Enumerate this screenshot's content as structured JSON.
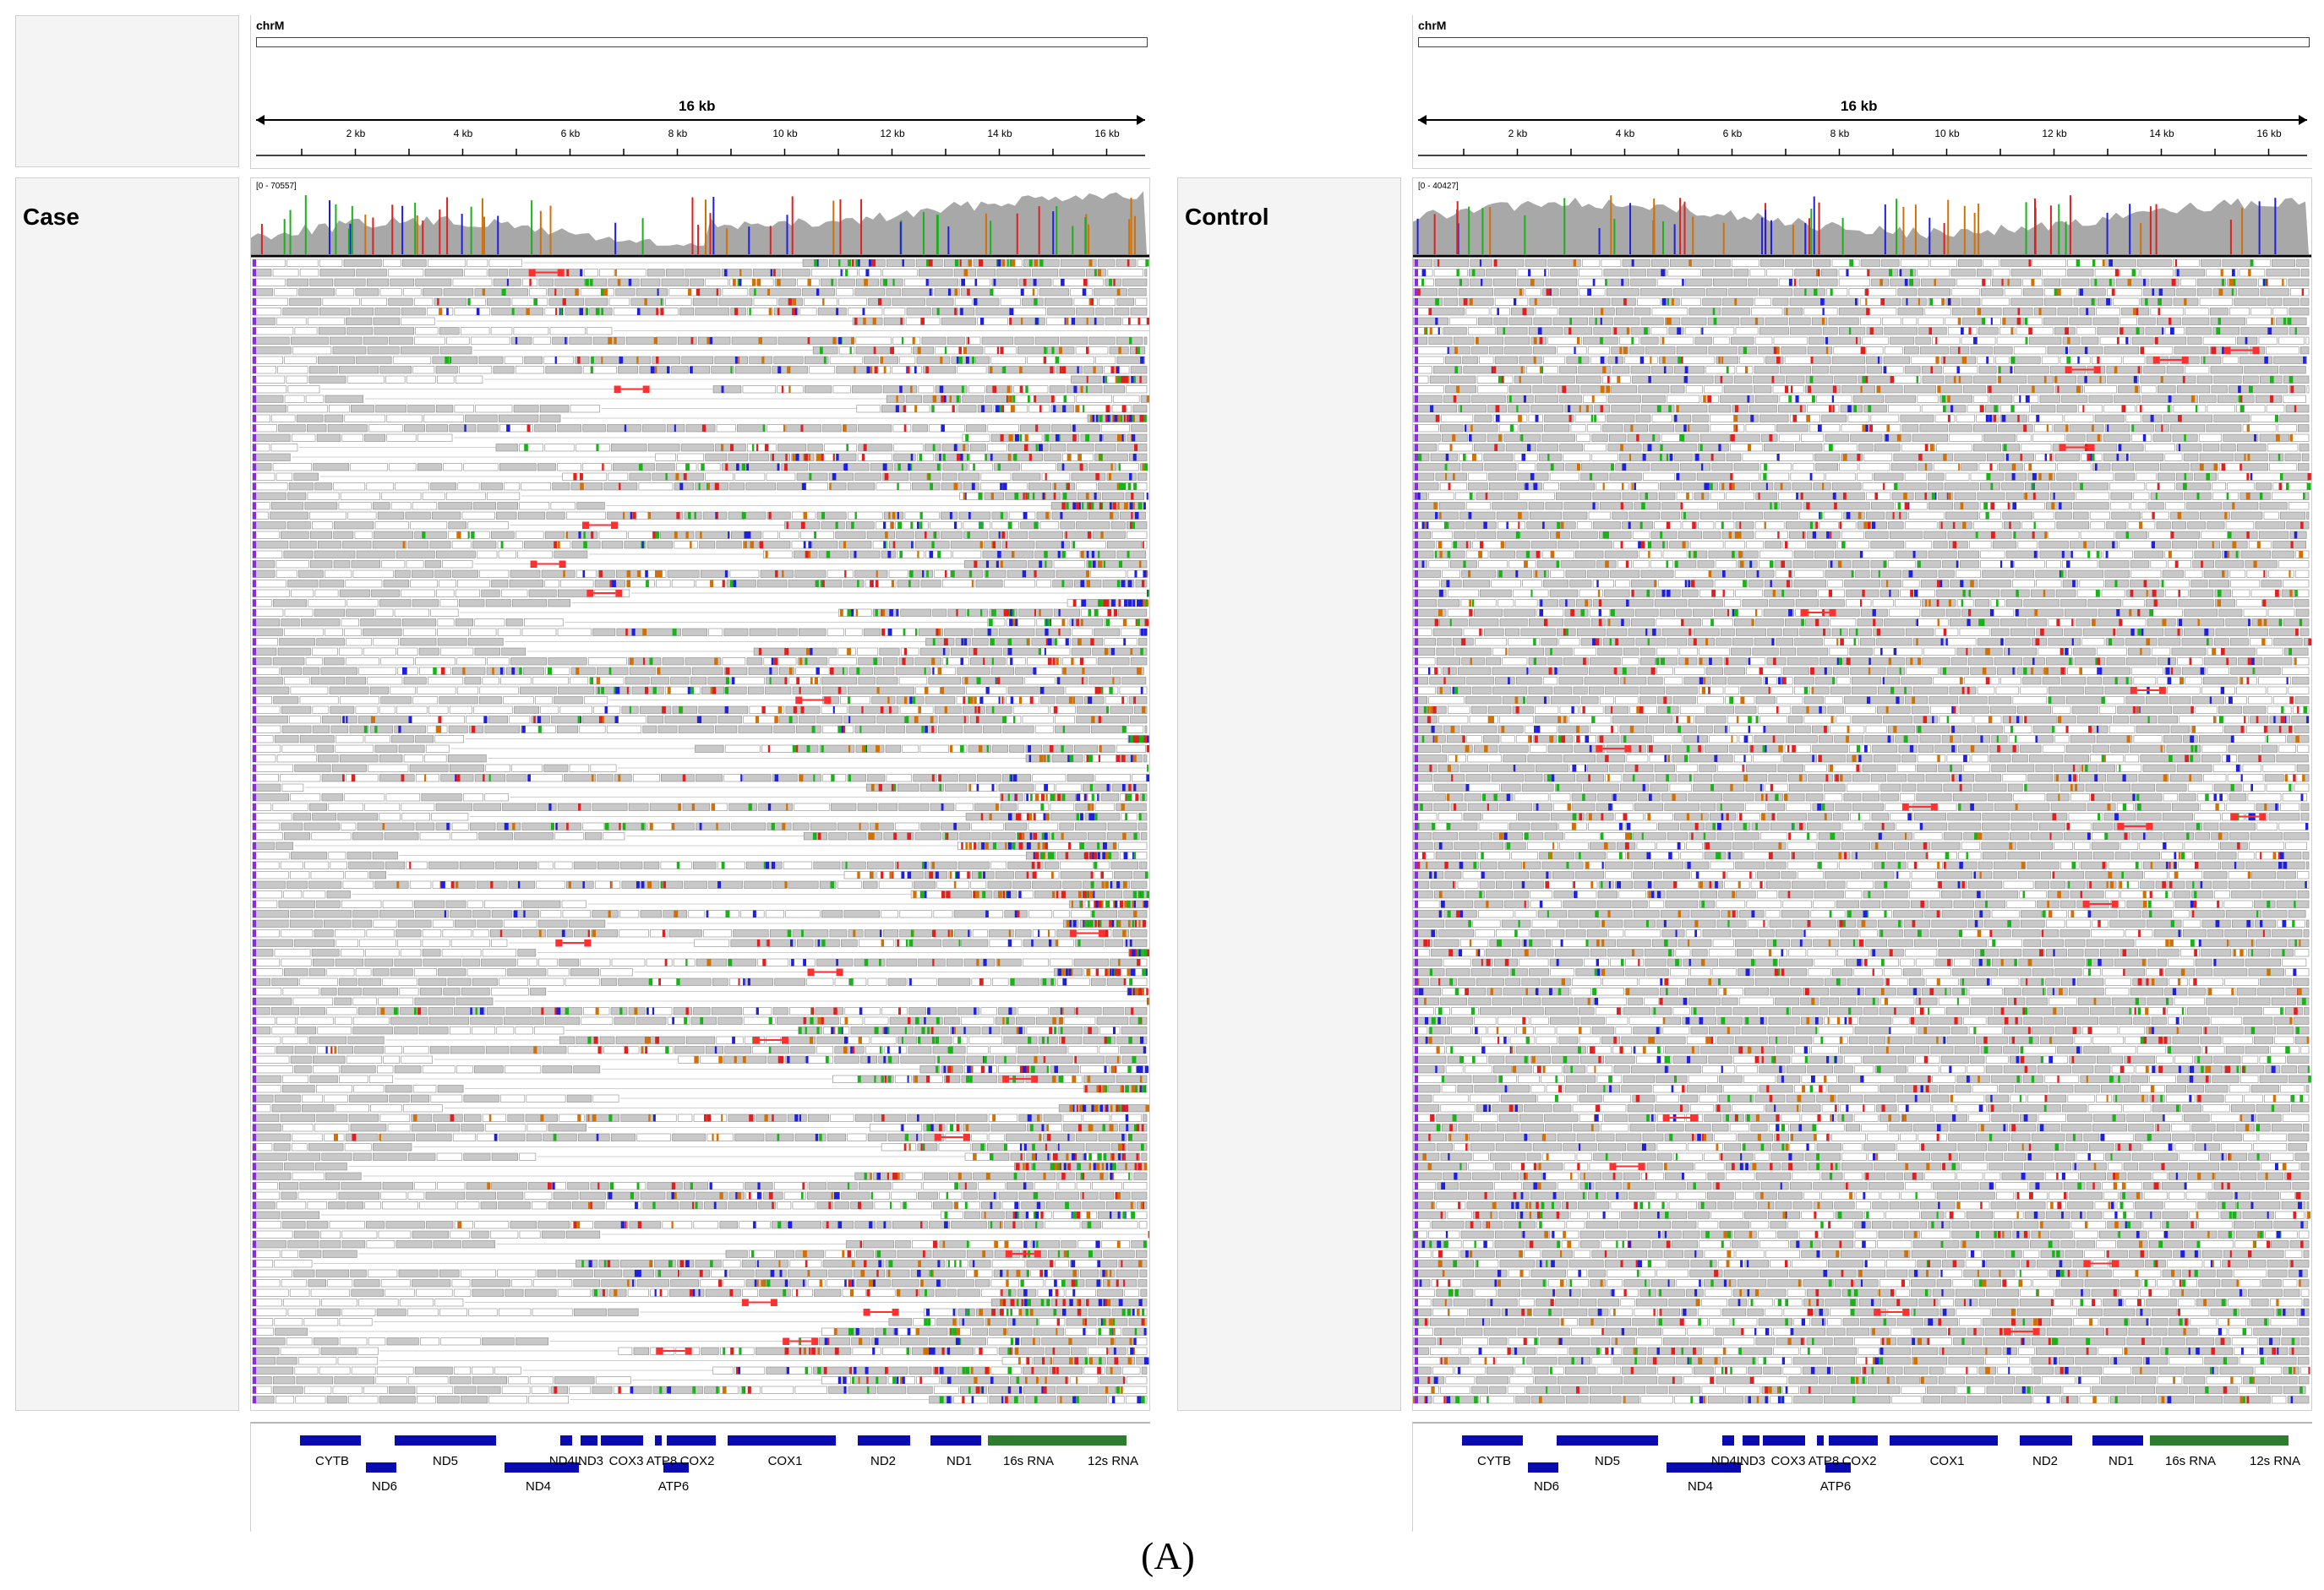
{
  "panel_tag": "(A)",
  "colors": {
    "coverage": "#a8a8a8",
    "read": "#c8c8c8",
    "read_border": "#8a8a8a",
    "gene_block": "#0a0ab4",
    "rna_block": "#2e7d2e",
    "split_line": "#ff3030",
    "mismatch_a": "#19b219",
    "mismatch_c": "#1f1fe0",
    "mismatch_g": "#d17105",
    "mismatch_t": "#e01f1f",
    "insertion": "#8a2be2"
  },
  "left": {
    "sample_label": "Case",
    "chrom": "chrM",
    "span_label": "16 kb",
    "coverage_range": "[0 - 70557]",
    "tick_labels": [
      "2 kb",
      "4 kb",
      "6 kb",
      "8 kb",
      "10 kb",
      "12 kb",
      "14 kb",
      "16 kb"
    ]
  },
  "right": {
    "sample_label": "Control",
    "chrom": "chrM",
    "span_label": "16 kb",
    "coverage_range": "[0 - 40427]",
    "tick_labels": [
      "2 kb",
      "4 kb",
      "6 kb",
      "8 kb",
      "10 kb",
      "12 kb",
      "14 kb",
      "16 kb"
    ]
  },
  "genes_top": [
    "CYTB",
    "ND5",
    "ND4L",
    "ND3",
    "COX3",
    "ATP8",
    "COX2",
    "COX1",
    "ND2",
    "ND1",
    "16s RNA",
    "12s RNA"
  ],
  "genes_bottom": [
    "ND6",
    "ND4",
    "ATP6"
  ]
}
